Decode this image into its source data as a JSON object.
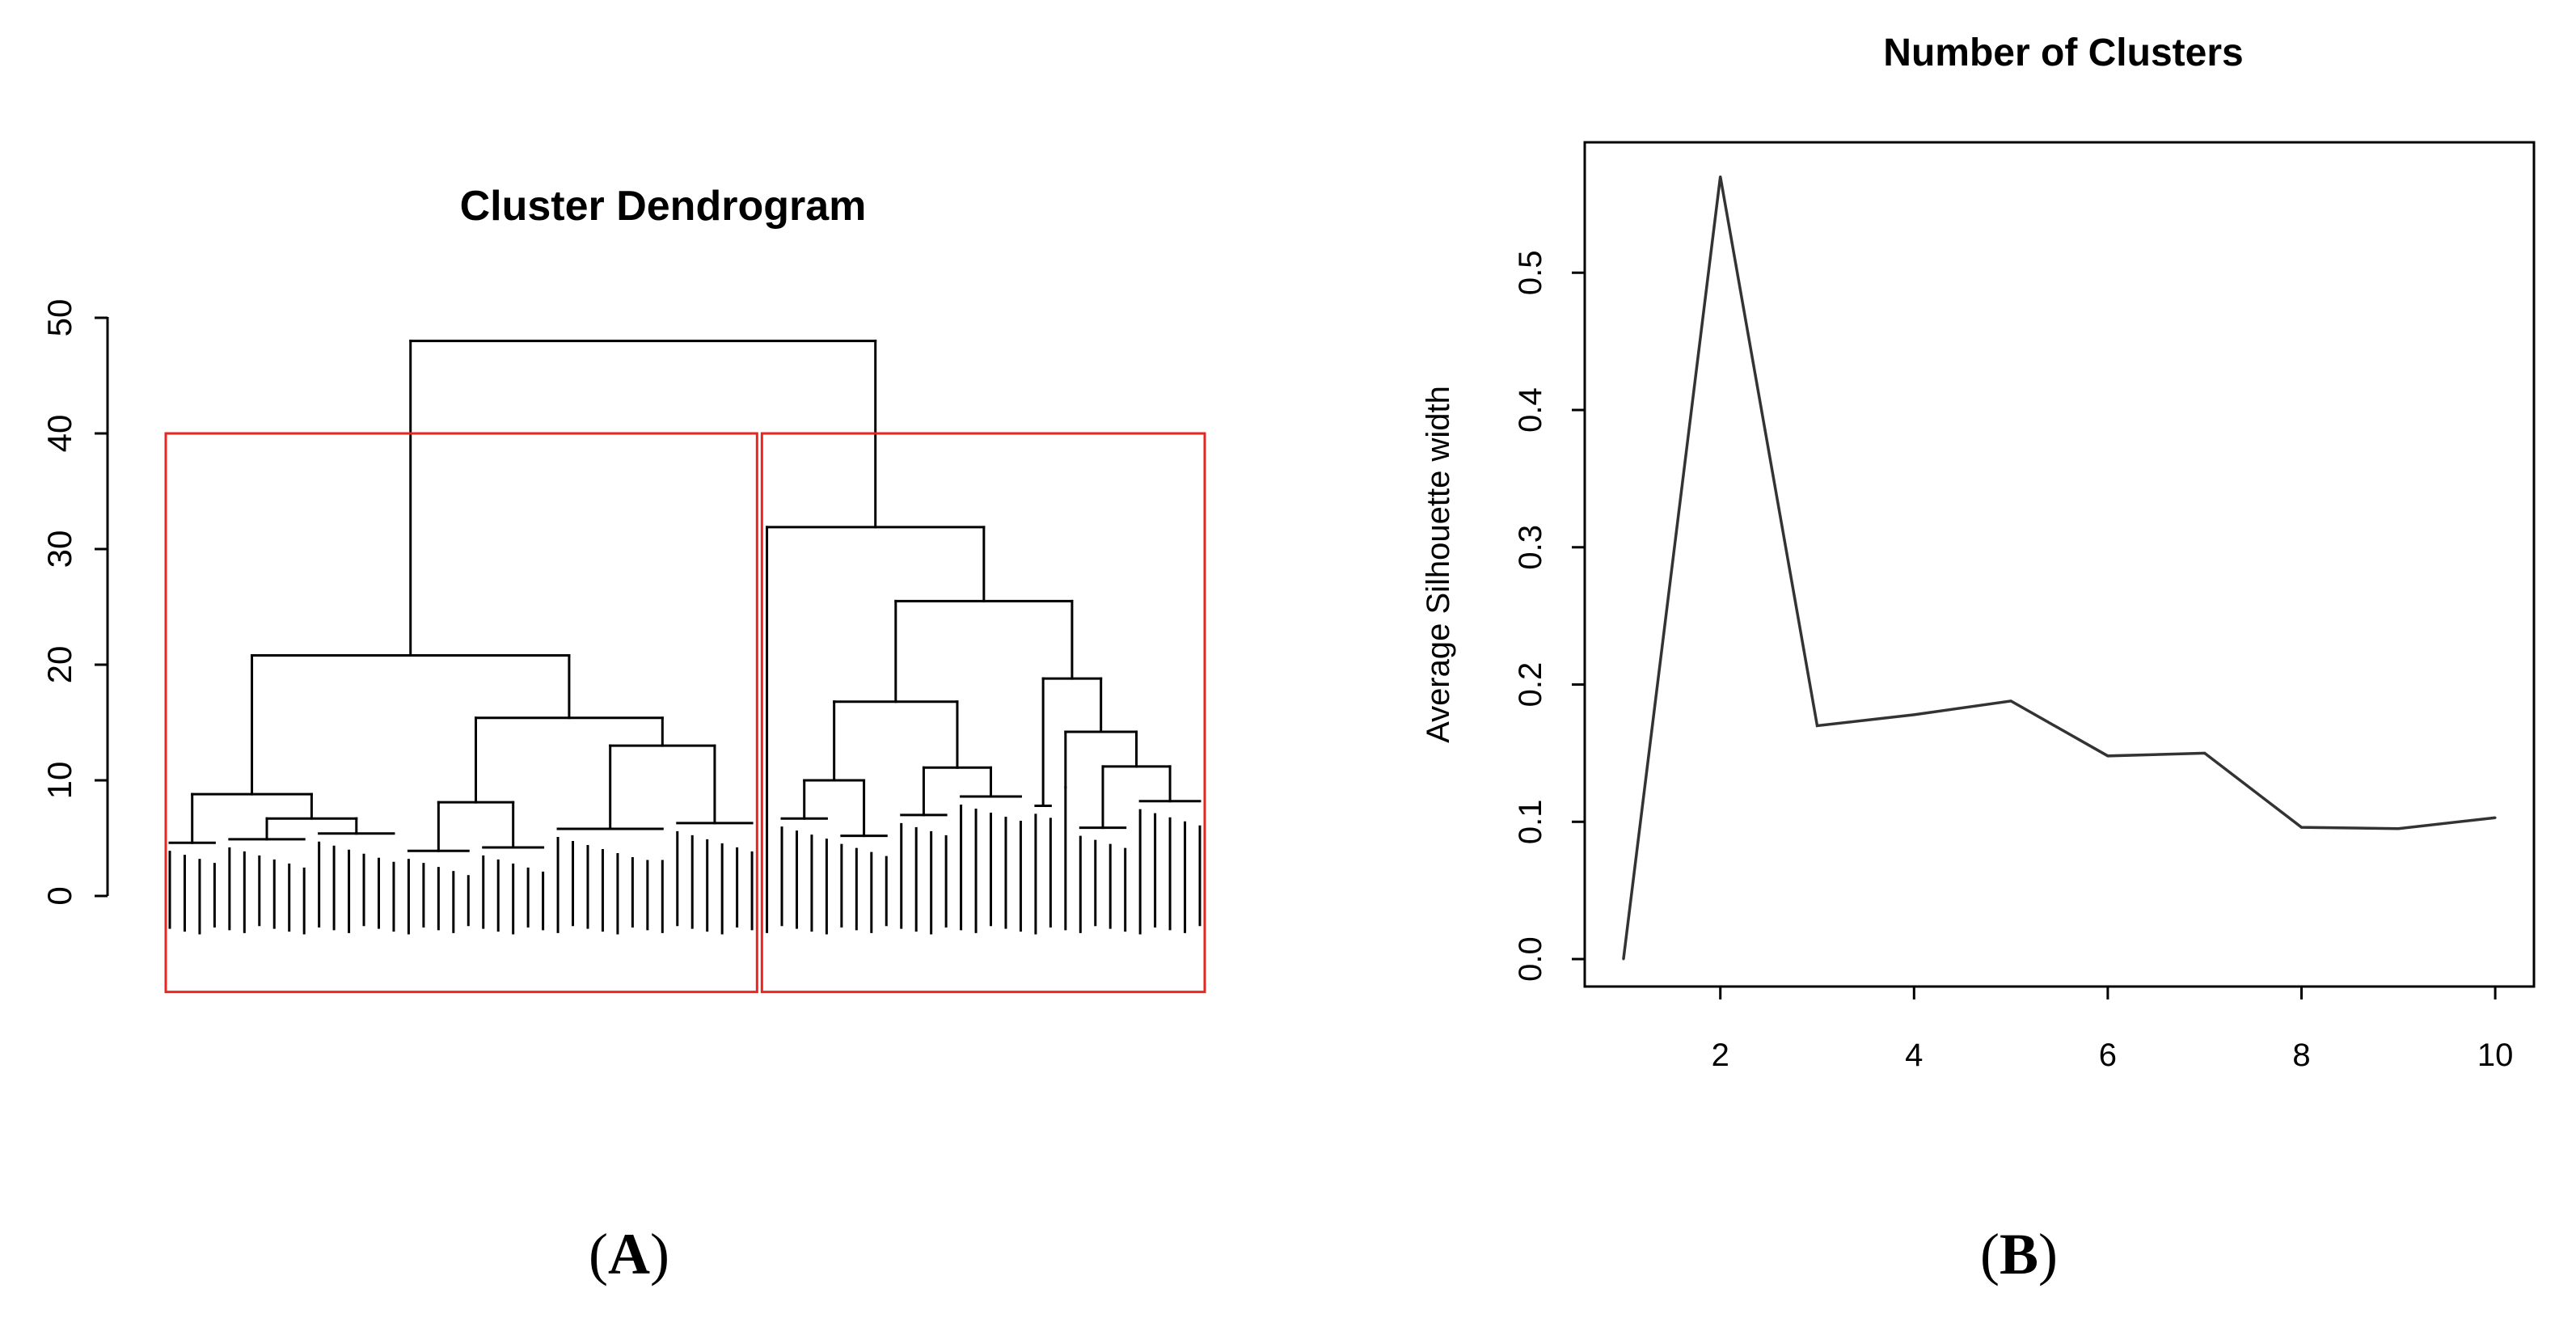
{
  "panels": {
    "a_label": "A",
    "b_label": "B"
  },
  "chart_data": [
    {
      "type": "dendrogram",
      "title": "Cluster Dendrogram",
      "xlabel": "",
      "ylabel": "",
      "ylim": [
        -8,
        50
      ],
      "yticks": [
        "0",
        "10",
        "20",
        "30",
        "40",
        "50"
      ],
      "root_height": 48,
      "clusters_highlighted": 2,
      "cut_height": 40,
      "cluster_box_color": "#e8251f",
      "branches": [
        {
          "name": "left",
          "height": 20.8,
          "children": [
            {
              "name": "left-a",
              "height": 8.8,
              "children": [
                {
                  "height": 4.6,
                  "leaves": 4
                },
                {
                  "height": 6.7,
                  "children": [
                    {
                      "height": 4.9,
                      "leaves": 6
                    },
                    {
                      "height": 5.4,
                      "leaves": 6
                    }
                  ]
                }
              ]
            },
            {
              "name": "left-b",
              "height": 15.4,
              "children": [
                {
                  "height": 8.1,
                  "children": [
                    {
                      "height": 3.9,
                      "leaves": 5
                    },
                    {
                      "height": 4.2,
                      "leaves": 5
                    }
                  ]
                },
                {
                  "height": 13.0,
                  "children": [
                    {
                      "height": 5.8,
                      "leaves": 8
                    },
                    {
                      "height": 6.3,
                      "leaves": 6
                    }
                  ]
                }
              ]
            }
          ]
        },
        {
          "name": "right",
          "height": 31.9,
          "children": [
            {
              "name": "right-a",
              "height": 6.2,
              "leaves": 1
            },
            {
              "name": "right-b",
              "height": 25.5,
              "children": [
                {
                  "height": 16.8,
                  "children": [
                    {
                      "height": 10.0,
                      "children": [
                        {
                          "height": 6.7,
                          "leaves": 4
                        },
                        {
                          "height": 5.2,
                          "leaves": 4
                        }
                      ]
                    },
                    {
                      "height": 11.1,
                      "children": [
                        {
                          "height": 7.0,
                          "leaves": 4
                        },
                        {
                          "height": 8.6,
                          "leaves": 5
                        }
                      ]
                    }
                  ]
                },
                {
                  "height": 18.8,
                  "children": [
                    {
                      "height": 7.8,
                      "leaves": 2
                    },
                    {
                      "height": 14.2,
                      "children": [
                        {
                          "height": 9.4,
                          "leaves": 1
                        },
                        {
                          "height": 11.2,
                          "children": [
                            {
                              "height": 5.9,
                              "leaves": 4
                            },
                            {
                              "height": 8.2,
                              "leaves": 5
                            }
                          ]
                        }
                      ]
                    }
                  ]
                }
              ]
            }
          ]
        }
      ]
    },
    {
      "type": "line",
      "title": "Number of Clusters",
      "xlabel": "",
      "ylabel": "Average Silhouette width",
      "x": [
        1,
        2,
        3,
        4,
        5,
        6,
        7,
        8,
        9,
        10
      ],
      "series": [
        {
          "values": [
            0.0,
            0.57,
            0.17,
            0.178,
            0.188,
            0.148,
            0.15,
            0.096,
            0.095,
            0.103
          ]
        }
      ],
      "xlim": [
        0.6,
        10.4
      ],
      "ylim": [
        -0.02,
        0.595
      ],
      "xticks": [
        "2",
        "4",
        "6",
        "8",
        "10"
      ],
      "yticks": [
        "0.0",
        "0.1",
        "0.2",
        "0.3",
        "0.4",
        "0.5"
      ],
      "grid": false,
      "line_color": "#333333"
    }
  ]
}
